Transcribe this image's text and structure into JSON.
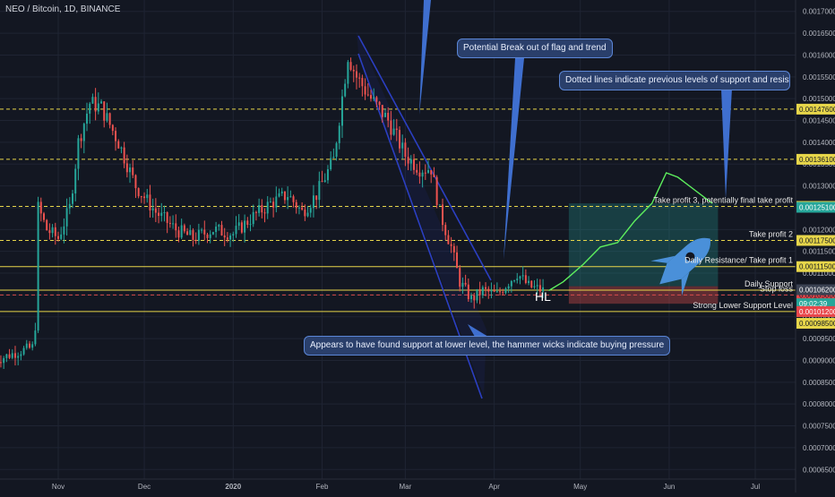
{
  "chart_data": {
    "type": "candlestick",
    "title": "NEO / Bitcoin, 1D, BINANCE",
    "y_axis_ticks": [
      "0.00170000",
      "0.00165000",
      "0.00160000",
      "0.00155000",
      "0.00150000",
      "0.00145000",
      "0.00140000",
      "0.00135000",
      "0.00130000",
      "0.00125000",
      "0.00120000",
      "0.00115000",
      "0.00110000",
      "0.00105000",
      "0.00100000",
      "0.00095000",
      "0.00090000",
      "0.00085000",
      "0.00080000",
      "0.00075000",
      "0.00070000",
      "0.00065000"
    ],
    "ylim": [
      0.00063,
      0.00172
    ],
    "x_axis_ticks": [
      "Nov",
      "Dec",
      "2020",
      "Feb",
      "Mar",
      "Apr",
      "May",
      "Jun",
      "Jul"
    ],
    "x_tick_dates": [
      "2019-11-01",
      "2019-12-01",
      "2020-01-01",
      "2020-02-01",
      "2020-03-01",
      "2020-04-01",
      "2020-05-01",
      "2020-06-01",
      "2020-07-01"
    ],
    "price_path_keypoints": [
      [
        "2019-10-10",
        0.0009
      ],
      [
        "2019-10-18",
        0.00092
      ],
      [
        "2019-10-23",
        0.00093
      ],
      [
        "2019-10-24",
        0.00098
      ],
      [
        "2019-10-25",
        0.00125
      ],
      [
        "2019-10-28",
        0.0012
      ],
      [
        "2019-11-01",
        0.00118
      ],
      [
        "2019-11-05",
        0.00125
      ],
      [
        "2019-11-08",
        0.0014
      ],
      [
        "2019-11-12",
        0.00149
      ],
      [
        "2019-11-16",
        0.00148
      ],
      [
        "2019-11-22",
        0.0014
      ],
      [
        "2019-11-28",
        0.0013
      ],
      [
        "2019-12-05",
        0.00124
      ],
      [
        "2019-12-12",
        0.0012
      ],
      [
        "2019-12-18",
        0.00118
      ],
      [
        "2019-12-25",
        0.0012
      ],
      [
        "2020-01-01",
        0.00119
      ],
      [
        "2020-01-08",
        0.00123
      ],
      [
        "2020-01-14",
        0.00126
      ],
      [
        "2020-01-20",
        0.00128
      ],
      [
        "2020-01-25",
        0.00124
      ],
      [
        "2020-01-30",
        0.00128
      ],
      [
        "2020-02-05",
        0.00136
      ],
      [
        "2020-02-10",
        0.0016
      ],
      [
        "2020-02-13",
        0.00155
      ],
      [
        "2020-02-18",
        0.0015
      ],
      [
        "2020-02-24",
        0.00145
      ],
      [
        "2020-03-01",
        0.00137
      ],
      [
        "2020-03-06",
        0.00134
      ],
      [
        "2020-03-10",
        0.00134
      ],
      [
        "2020-03-13",
        0.00124
      ],
      [
        "2020-03-17",
        0.00116
      ],
      [
        "2020-03-20",
        0.00108
      ],
      [
        "2020-03-24",
        0.00104
      ],
      [
        "2020-03-28",
        0.00106
      ],
      [
        "2020-04-02",
        0.00105
      ],
      [
        "2020-04-06",
        0.00108
      ],
      [
        "2020-04-09",
        0.0011
      ],
      [
        "2020-04-13",
        0.00107
      ],
      [
        "2020-04-18",
        0.00106
      ]
    ],
    "projection_path": [
      [
        "2020-04-20",
        0.00106
      ],
      [
        "2020-04-25",
        0.00108
      ],
      [
        "2020-05-02",
        0.00112
      ],
      [
        "2020-05-08",
        0.00116
      ],
      [
        "2020-05-14",
        0.00117
      ],
      [
        "2020-05-20",
        0.00122
      ],
      [
        "2020-05-26",
        0.00126
      ],
      [
        "2020-05-31",
        0.00133
      ],
      [
        "2020-06-04",
        0.00132
      ],
      [
        "2020-06-10",
        0.00129
      ],
      [
        "2020-06-16",
        0.00126
      ]
    ],
    "levels": [
      {
        "name": "dotted-1",
        "price": 0.001476,
        "label": "0.00147600",
        "style": "dashed",
        "color": "#e7d64a",
        "text": ""
      },
      {
        "name": "dotted-2",
        "price": 0.001361,
        "label": "0.00136100",
        "style": "dashed",
        "color": "#e7d64a",
        "text": ""
      },
      {
        "name": "take-profit-3",
        "price": 0.001253,
        "label": "0.00125300",
        "style": "dashed",
        "color": "#e7d64a",
        "text": "Take profit 3, potentially final take profit"
      },
      {
        "name": "take-profit-2",
        "price": 0.001175,
        "label": "0.00117500",
        "style": "dashed",
        "color": "#e7d64a",
        "text": "Take profit 2"
      },
      {
        "name": "take-profit-1",
        "price": 0.001115,
        "label": "0.00111500",
        "style": "solid",
        "color": "#e7d64a",
        "text": "Daily Resistance/ Take profit 1"
      },
      {
        "name": "daily-support",
        "price": 0.001061,
        "label": "0.00106100",
        "style": "solid",
        "color": "#e7d64a",
        "text": "Daily Support"
      },
      {
        "name": "stop-loss",
        "price": 0.00105,
        "label": "0.00105000",
        "style": "dashed",
        "color": "#d94b4b",
        "text": "Stop loss"
      },
      {
        "name": "strong-lower-support",
        "price": 0.001012,
        "label": "0.00101200",
        "style": "solid",
        "color": "#e7d64a",
        "text": "Strong Lower Support Level"
      }
    ],
    "price_labels": [
      {
        "value": 0.001251,
        "text": "0.00125100",
        "bg": "#26a69a"
      },
      {
        "value": 0.001062,
        "text": "0.00106200",
        "bg": "#3b4252"
      },
      {
        "value": 0.00103,
        "text": "09:02:39",
        "bg": "#26a69a"
      },
      {
        "value": 0.001012,
        "text": "0.00101200",
        "bg": "#e8464b"
      },
      {
        "value": 0.000985,
        "text": "0.00098500",
        "bg": "#e7d64a"
      }
    ],
    "annotations": {
      "hl": "HL",
      "callout_break": "Potential Break out of flag and trend",
      "callout_dotted": "Dotted lines indicate previous levels of support and resistance, can u",
      "callout_support": "Appears to have found support at lower level, the hammer wicks indicate buying pressure"
    },
    "position_box": {
      "start": "2020-04-27",
      "end": "2020-06-18",
      "entry": 0.00107,
      "target": 0.00126,
      "stop": 0.00103
    }
  },
  "colors": {
    "background": "#131722",
    "up": "#26a69a",
    "down": "#ef5350",
    "grid": "#1f2433",
    "level": "#e7d64a",
    "stop": "#d94b4b",
    "trend": "#2b3fc2",
    "callout": "#2a3f6b"
  }
}
